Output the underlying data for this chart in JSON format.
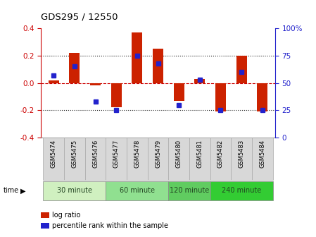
{
  "title": "GDS295 / 12550",
  "samples": [
    "GSM5474",
    "GSM5475",
    "GSM5476",
    "GSM5477",
    "GSM5478",
    "GSM5479",
    "GSM5480",
    "GSM5481",
    "GSM5482",
    "GSM5483",
    "GSM5484"
  ],
  "log_ratio": [
    0.02,
    0.22,
    -0.02,
    -0.18,
    0.37,
    0.25,
    -0.13,
    0.03,
    -0.21,
    0.2,
    -0.21
  ],
  "percentile": [
    57,
    65,
    33,
    25,
    75,
    68,
    30,
    53,
    25,
    60,
    25
  ],
  "groups": [
    {
      "label": "30 minute",
      "start": 0,
      "end": 2,
      "color": "#d0f0c0"
    },
    {
      "label": "60 minute",
      "start": 3,
      "end": 5,
      "color": "#90e090"
    },
    {
      "label": "120 minute",
      "start": 6,
      "end": 7,
      "color": "#60cc60"
    },
    {
      "label": "240 minute",
      "start": 8,
      "end": 10,
      "color": "#33cc33"
    }
  ],
  "bar_color": "#cc2200",
  "dot_color": "#2222cc",
  "ylim_left": [
    -0.4,
    0.4
  ],
  "ylim_right": [
    0,
    100
  ],
  "yticks_left": [
    -0.4,
    -0.2,
    0.0,
    0.2,
    0.4
  ],
  "yticks_right": [
    0,
    25,
    50,
    75,
    100
  ],
  "background_color": "#ffffff",
  "bar_width": 0.5,
  "sample_cell_color": "#d8d8d8",
  "sample_cell_edge": "#aaaaaa"
}
